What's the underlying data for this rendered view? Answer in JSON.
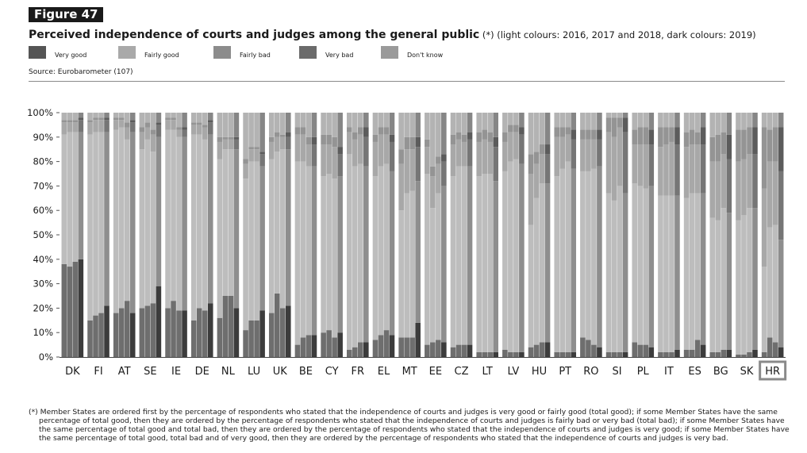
{
  "header": {
    "figure_label": "Figure 47",
    "title": "Perceived independence of courts and judges among the general public",
    "subtitle": " (*) (light colours: 2016, 2017 and 2018, dark colours: 2019)",
    "source": "Source: Eurobarometer (107)"
  },
  "legend": [
    {
      "label": "Very good",
      "color": "#555555"
    },
    {
      "label": "Fairly good",
      "color": "#a9a9a9"
    },
    {
      "label": "Fairly bad",
      "color": "#8c8c8c"
    },
    {
      "label": "Very bad",
      "color": "#6b6b6b"
    },
    {
      "label": "Don't know",
      "color": "#9a9a9a"
    }
  ],
  "footnote": "(*) Member States are ordered first by the percentage of respondents who stated that the independence of courts and judges is very good or fairly good (total good); if some Member States have the same percentage of total good, then they are ordered by the percentage of respondents who stated that the independence of courts and judges is fairly bad or very bad (total bad); if some Member States have the same percentage of total good and total bad, then they are ordered by the percentage of respondents who stated that the independence of courts and judges is very good; if some Member States have the same percentage of total good, total bad and of very good, then they are ordered by the percentage of respondents who stated that the independence of courts and judges is very bad.",
  "chart_data": {
    "type": "bar",
    "stacked": true,
    "ylim": [
      0,
      100
    ],
    "y_ticks": [
      "0%",
      "10%",
      "20%",
      "30%",
      "40%",
      "50%",
      "60%",
      "70%",
      "80%",
      "90%",
      "100%"
    ],
    "years": [
      "2016",
      "2017",
      "2018",
      "2019"
    ],
    "categories": [
      "DK",
      "FI",
      "AT",
      "SE",
      "IE",
      "DE",
      "NL",
      "LU",
      "UK",
      "BE",
      "CY",
      "FR",
      "EL",
      "MT",
      "EE",
      "CZ",
      "LT",
      "LV",
      "HU",
      "PT",
      "RO",
      "SI",
      "PL",
      "IT",
      "ES",
      "BG",
      "SK",
      "HR"
    ],
    "highlight": "HR",
    "colors": {
      "light": [
        "#6e6e6e",
        "#bdbdbd",
        "#a8a8a8",
        "#949494",
        "#b3b3b3"
      ],
      "dark": [
        "#3c3c3c",
        "#8e8e8e",
        "#767676",
        "#5c5c5c",
        "#868686"
      ]
    },
    "series_order": [
      "Very good",
      "Fairly good",
      "Fairly bad",
      "Very bad",
      "Don't know"
    ],
    "data": {
      "DK": [
        [
          38,
          53,
          5,
          1,
          3
        ],
        [
          37,
          55,
          4,
          1,
          3
        ],
        [
          39,
          53,
          4,
          1,
          3
        ],
        [
          40,
          52,
          5,
          1,
          2
        ]
      ],
      "FI": [
        [
          15,
          76,
          5,
          1,
          3
        ],
        [
          17,
          75,
          5,
          1,
          2
        ],
        [
          18,
          74,
          5,
          1,
          2
        ],
        [
          21,
          71,
          5,
          1,
          2
        ]
      ],
      "AT": [
        [
          18,
          75,
          4,
          1,
          2
        ],
        [
          20,
          74,
          3,
          1,
          2
        ],
        [
          23,
          66,
          5,
          2,
          4
        ],
        [
          18,
          74,
          4,
          1,
          3
        ]
      ],
      "SE": [
        [
          20,
          65,
          7,
          2,
          6
        ],
        [
          21,
          68,
          5,
          2,
          4
        ],
        [
          22,
          62,
          7,
          2,
          7
        ],
        [
          29,
          61,
          5,
          1,
          4
        ]
      ],
      "IE": [
        [
          20,
          73,
          4,
          1,
          2
        ],
        [
          23,
          70,
          4,
          1,
          2
        ],
        [
          19,
          71,
          3,
          1,
          6
        ],
        [
          19,
          71,
          3,
          1,
          6
        ]
      ],
      "DE": [
        [
          15,
          76,
          4,
          1,
          4
        ],
        [
          20,
          71,
          4,
          1,
          4
        ],
        [
          19,
          70,
          5,
          1,
          5
        ],
        [
          22,
          69,
          5,
          1,
          3
        ]
      ],
      "NL": [
        [
          16,
          65,
          7,
          2,
          10
        ],
        [
          25,
          60,
          4,
          1,
          10
        ],
        [
          25,
          60,
          4,
          1,
          10
        ],
        [
          20,
          65,
          4,
          1,
          10
        ]
      ],
      "LU": [
        [
          11,
          62,
          6,
          2,
          19
        ],
        [
          15,
          65,
          5,
          1,
          14
        ],
        [
          15,
          65,
          5,
          1,
          14
        ],
        [
          19,
          59,
          5,
          1,
          16
        ]
      ],
      "UK": [
        [
          18,
          63,
          7,
          2,
          10
        ],
        [
          26,
          58,
          6,
          2,
          8
        ],
        [
          20,
          65,
          5,
          1,
          9
        ],
        [
          21,
          64,
          5,
          2,
          8
        ]
      ],
      "BE": [
        [
          5,
          75,
          11,
          3,
          6
        ],
        [
          8,
          72,
          11,
          3,
          6
        ],
        [
          9,
          69,
          9,
          3,
          10
        ],
        [
          9,
          69,
          9,
          3,
          10
        ]
      ],
      "CY": [
        [
          10,
          64,
          13,
          4,
          9
        ],
        [
          11,
          64,
          12,
          4,
          9
        ],
        [
          8,
          65,
          13,
          4,
          10
        ],
        [
          10,
          64,
          9,
          3,
          14
        ]
      ],
      "FR": [
        [
          3,
          80,
          9,
          2,
          6
        ],
        [
          4,
          74,
          11,
          3,
          8
        ],
        [
          6,
          73,
          12,
          3,
          6
        ],
        [
          6,
          72,
          12,
          4,
          6
        ]
      ],
      "EL": [
        [
          7,
          67,
          14,
          3,
          9
        ],
        [
          9,
          69,
          13,
          3,
          6
        ],
        [
          11,
          68,
          12,
          3,
          6
        ],
        [
          9,
          67,
          12,
          3,
          9
        ]
      ],
      "MT": [
        [
          8,
          52,
          19,
          6,
          15
        ],
        [
          8,
          59,
          18,
          5,
          10
        ],
        [
          8,
          60,
          17,
          5,
          10
        ],
        [
          14,
          58,
          14,
          4,
          10
        ]
      ],
      "EE": [
        [
          5,
          70,
          11,
          3,
          11
        ],
        [
          6,
          55,
          13,
          4,
          22
        ],
        [
          7,
          60,
          12,
          3,
          18
        ],
        [
          6,
          64,
          10,
          3,
          17
        ]
      ],
      "CZ": [
        [
          4,
          70,
          13,
          4,
          9
        ],
        [
          5,
          73,
          11,
          3,
          8
        ],
        [
          5,
          73,
          10,
          3,
          9
        ],
        [
          5,
          73,
          11,
          3,
          8
        ]
      ],
      "LT": [
        [
          2,
          72,
          14,
          4,
          8
        ],
        [
          2,
          73,
          14,
          4,
          7
        ],
        [
          2,
          73,
          13,
          4,
          8
        ],
        [
          2,
          70,
          14,
          4,
          10
        ]
      ],
      "LV": [
        [
          3,
          73,
          12,
          4,
          8
        ],
        [
          2,
          78,
          12,
          3,
          5
        ],
        [
          2,
          79,
          11,
          3,
          5
        ],
        [
          2,
          77,
          12,
          3,
          6
        ]
      ],
      "HU": [
        [
          4,
          50,
          21,
          8,
          17
        ],
        [
          5,
          60,
          14,
          5,
          16
        ],
        [
          6,
          65,
          12,
          4,
          13
        ],
        [
          6,
          65,
          12,
          4,
          13
        ]
      ],
      "PT": [
        [
          2,
          72,
          16,
          4,
          6
        ],
        [
          2,
          75,
          13,
          4,
          6
        ],
        [
          2,
          78,
          11,
          3,
          6
        ],
        [
          2,
          75,
          12,
          4,
          7
        ]
      ],
      "RO": [
        [
          8,
          68,
          13,
          4,
          7
        ],
        [
          7,
          69,
          13,
          4,
          7
        ],
        [
          5,
          72,
          12,
          4,
          7
        ],
        [
          4,
          74,
          11,
          4,
          7
        ]
      ],
      "SI": [
        [
          2,
          65,
          25,
          6,
          2
        ],
        [
          2,
          62,
          26,
          8,
          2
        ],
        [
          2,
          68,
          24,
          4,
          2
        ],
        [
          2,
          65,
          25,
          6,
          2
        ]
      ],
      "PL": [
        [
          6,
          65,
          16,
          6,
          7
        ],
        [
          5,
          65,
          17,
          7,
          6
        ],
        [
          5,
          64,
          18,
          7,
          6
        ],
        [
          4,
          66,
          17,
          6,
          7
        ]
      ],
      "IT": [
        [
          2,
          64,
          20,
          8,
          6
        ],
        [
          2,
          64,
          21,
          7,
          6
        ],
        [
          2,
          64,
          22,
          6,
          6
        ],
        [
          3,
          63,
          21,
          7,
          6
        ]
      ],
      "ES": [
        [
          3,
          62,
          21,
          6,
          8
        ],
        [
          3,
          64,
          20,
          6,
          7
        ],
        [
          7,
          60,
          20,
          5,
          8
        ],
        [
          5,
          62,
          20,
          7,
          6
        ]
      ],
      "BG": [
        [
          2,
          55,
          23,
          10,
          10
        ],
        [
          2,
          54,
          24,
          11,
          9
        ],
        [
          3,
          58,
          22,
          9,
          8
        ],
        [
          3,
          56,
          22,
          10,
          9
        ]
      ],
      "SK": [
        [
          1,
          55,
          24,
          13,
          7
        ],
        [
          1,
          57,
          23,
          12,
          7
        ],
        [
          2,
          59,
          22,
          11,
          6
        ],
        [
          3,
          58,
          22,
          11,
          6
        ]
      ],
      "HR": [
        [
          2,
          35,
          32,
          25,
          6
        ],
        [
          8,
          45,
          27,
          13,
          7
        ],
        [
          6,
          48,
          26,
          14,
          6
        ],
        [
          4,
          44,
          28,
          18,
          6
        ]
      ]
    }
  }
}
